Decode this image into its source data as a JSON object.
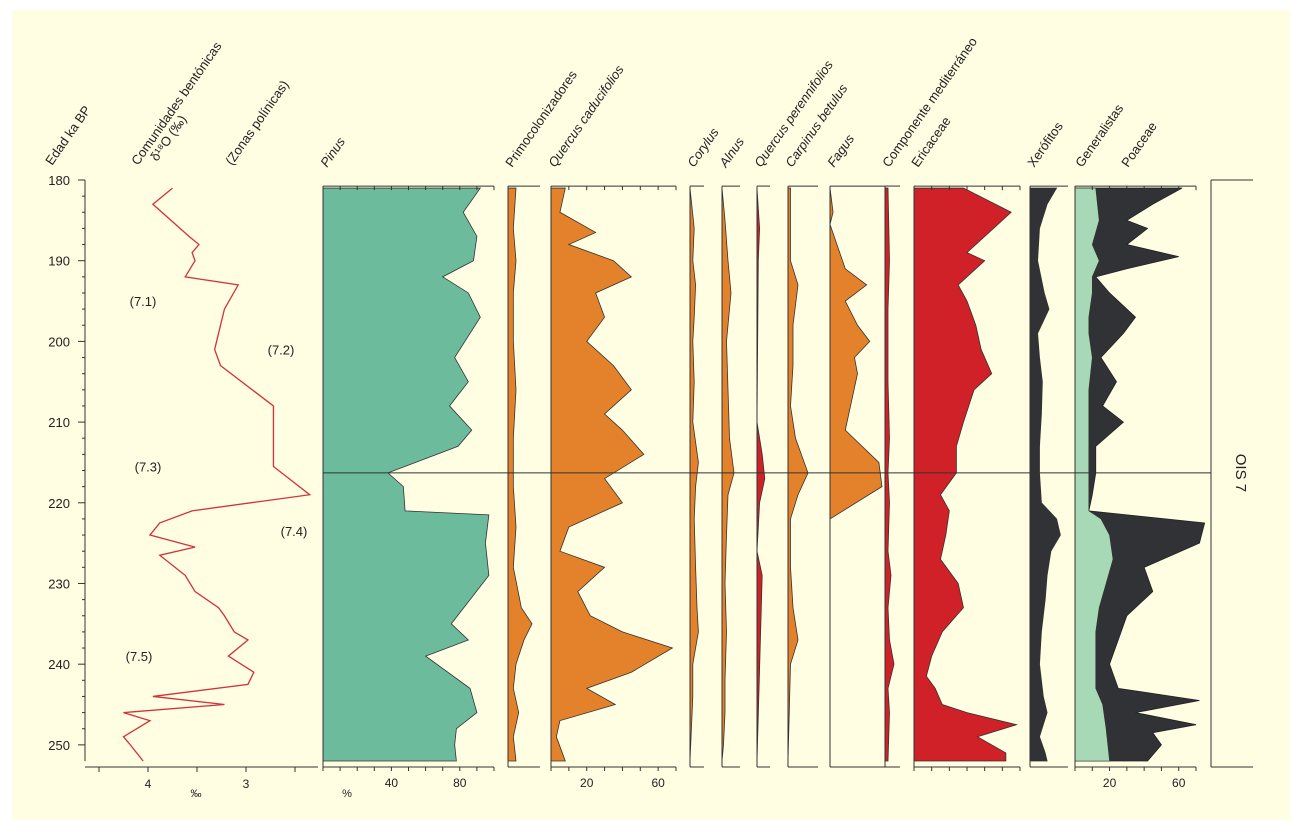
{
  "chart_data": {
    "type": "area",
    "age_axis": {
      "label": "Edad ka BP",
      "ticks": [
        "180",
        "190",
        "200",
        "210",
        "220",
        "230",
        "240",
        "250"
      ],
      "range": [
        180,
        252
      ]
    },
    "header_labels": {
      "benthic": "Comunidades bentónicas",
      "delta": "δ¹⁸O (‰)",
      "zones": "(Zonas polínicas)"
    },
    "bottom_units": {
      "permil": "‰",
      "percent": "%"
    },
    "zones": [
      {
        "label": "(7.1)",
        "age": 195
      },
      {
        "label": "(7.2)",
        "age": 201
      },
      {
        "label": "(7.3)",
        "age": 215.5
      },
      {
        "label": "(7.4)",
        "age": 223.5
      },
      {
        "label": "(7.5)",
        "age": 239
      }
    ],
    "event_line_age": 216.3,
    "ois_label": "OIS 7",
    "colors": {
      "background": "#fffde2",
      "delta_line": "#d2313a",
      "pinus": "#6cbb9d",
      "orange": "#e3822b",
      "red": "#cf2127",
      "dark": "#303236",
      "light_green": "#a8d9b6"
    },
    "delta18o": {
      "ticks": [
        "4",
        "3"
      ],
      "ages": [
        181,
        183,
        187,
        188,
        189,
        190,
        192,
        193,
        196,
        199,
        201,
        203,
        208,
        212,
        215.5,
        219,
        221,
        222.5,
        224,
        225.5,
        226.5,
        229,
        231,
        233,
        234,
        236,
        237,
        239,
        241,
        242.5,
        244,
        245,
        246,
        247,
        249,
        250,
        252
      ],
      "values": [
        3.75,
        3.95,
        3.58,
        3.48,
        3.55,
        3.52,
        3.62,
        3.08,
        3.22,
        3.28,
        3.32,
        3.26,
        2.72,
        2.72,
        2.72,
        2.35,
        3.55,
        3.88,
        3.98,
        3.52,
        3.88,
        3.62,
        3.52,
        3.28,
        3.22,
        3.12,
        2.98,
        3.18,
        2.92,
        2.98,
        3.95,
        3.22,
        4.25,
        3.98,
        4.25,
        4.18,
        4.05
      ]
    },
    "series": [
      {
        "name": "Pinus",
        "ages": [
          181,
          184,
          187,
          190,
          192,
          194,
          197,
          199,
          202,
          205,
          208,
          211,
          213,
          216.3,
          218,
          221,
          221.5,
          225,
          229,
          232,
          235,
          237,
          239,
          243,
          246,
          248,
          250,
          252
        ],
        "values": [
          92,
          82,
          90,
          88,
          70,
          85,
          92,
          86,
          77,
          85,
          74,
          87,
          79,
          38,
          47,
          48,
          97,
          95,
          97,
          86,
          75,
          85,
          60,
          86,
          90,
          78,
          77,
          78
        ],
        "ticks": [
          "40",
          "80"
        ]
      },
      {
        "name": "Primocolonizadores",
        "ages": [
          181,
          186,
          190,
          194,
          200,
          206,
          212,
          218,
          223,
          228,
          233,
          235,
          237,
          240,
          243,
          246,
          249,
          252
        ],
        "values": [
          3,
          2,
          3,
          2,
          2,
          3,
          2,
          2,
          3,
          2,
          5,
          9,
          6,
          3,
          2,
          4,
          2,
          3
        ]
      },
      {
        "name": "Quercus caducifolios",
        "ages": [
          181,
          184,
          186.5,
          188,
          190,
          192,
          194,
          197,
          200,
          203,
          206,
          209,
          211,
          214,
          217,
          220,
          223,
          226,
          228,
          231,
          234,
          236,
          238,
          241,
          243,
          245,
          247,
          249,
          252
        ],
        "values": [
          8,
          5,
          25,
          10,
          35,
          45,
          25,
          30,
          20,
          35,
          45,
          30,
          40,
          52,
          30,
          40,
          10,
          5,
          30,
          15,
          22,
          40,
          68,
          45,
          20,
          36,
          5,
          3,
          8
        ],
        "ticks": [
          "20",
          "60"
        ]
      },
      {
        "name": "Corylus",
        "ages": [
          181,
          186,
          190,
          193,
          197,
          200,
          205,
          210,
          215,
          218,
          222,
          228,
          233,
          236,
          240,
          244,
          248,
          252
        ],
        "values": [
          0,
          1.5,
          1,
          2,
          1.5,
          1,
          1.5,
          1,
          3,
          2,
          1.5,
          2,
          2.5,
          3,
          1,
          1,
          0.5,
          0
        ]
      },
      {
        "name": "Alnus",
        "ages": [
          181,
          185,
          190,
          194,
          200,
          206,
          212,
          216.3,
          219,
          224,
          230,
          236,
          242,
          246,
          250,
          252
        ],
        "values": [
          0,
          1,
          2,
          3,
          1.5,
          2,
          2.5,
          4,
          2,
          1.5,
          1,
          1.5,
          1,
          1,
          0.5,
          0
        ]
      },
      {
        "name": "Quercus perennifolios",
        "ages": [
          181,
          186,
          190,
          210,
          214,
          217,
          220,
          226,
          229,
          252
        ],
        "values": [
          0,
          1,
          0.5,
          0,
          2,
          3,
          1,
          0,
          2,
          0
        ]
      },
      {
        "name": "Carpinus betulus",
        "ages": [
          181,
          190,
          193,
          198,
          203,
          208,
          212,
          216.3,
          219,
          222,
          228,
          233,
          237,
          240,
          252
        ],
        "values": [
          1,
          1,
          4,
          2,
          2,
          1,
          3,
          8,
          4,
          1,
          1,
          2,
          4,
          1,
          0
        ]
      },
      {
        "name": "Fagus",
        "ages": [
          181,
          184,
          185.5,
          191,
          193,
          195,
          198,
          200,
          202,
          204,
          211,
          215,
          218,
          222
        ],
        "values": [
          0,
          1,
          0,
          5,
          12,
          5,
          9,
          13,
          8,
          9,
          5,
          16,
          17,
          0
        ]
      },
      {
        "name": "Componente mediterráneo",
        "ages": [
          181,
          190,
          196,
          205,
          212,
          216.3,
          220,
          226,
          229,
          233,
          237,
          240,
          243,
          246,
          252
        ],
        "values": [
          1,
          1.5,
          1,
          1,
          1.5,
          1,
          1.5,
          1,
          2,
          1,
          1.5,
          3,
          1,
          1.5,
          1
        ]
      },
      {
        "name": "Ericaceae",
        "ages": [
          181,
          184,
          186,
          189,
          190,
          193,
          195,
          198,
          201,
          204,
          206,
          210,
          213,
          216.3,
          219,
          221,
          224,
          227,
          230,
          233,
          236,
          239,
          241.5,
          243,
          245,
          246,
          247.5,
          249,
          251,
          252
        ],
        "values": [
          28,
          55,
          45,
          30,
          40,
          25,
          30,
          35,
          38,
          44,
          34,
          28,
          24,
          24,
          15,
          20,
          18,
          15,
          25,
          28,
          16,
          10,
          7,
          12,
          16,
          30,
          58,
          36,
          52,
          52
        ]
      },
      {
        "name": "Xerófitos",
        "ages": [
          181,
          183,
          186,
          190,
          194,
          196,
          199,
          202,
          205,
          209,
          213,
          216.3,
          220,
          222,
          224,
          226,
          229,
          232,
          236,
          240,
          244,
          246,
          249,
          251,
          252
        ],
        "values": [
          28,
          18,
          10,
          8,
          15,
          20,
          8,
          10,
          13,
          12,
          10,
          10,
          12,
          28,
          32,
          22,
          18,
          16,
          12,
          10,
          14,
          18,
          10,
          16,
          18
        ],
        "ticks": []
      },
      {
        "name": "Generalistas",
        "ages": [
          181,
          185,
          188,
          190,
          192,
          194,
          197,
          199,
          202,
          206,
          209,
          212,
          215,
          218,
          221,
          222,
          224,
          227,
          230,
          233,
          236,
          240,
          243,
          245,
          248,
          252
        ],
        "values": [
          12,
          14,
          10,
          14,
          10,
          10,
          8,
          8,
          10,
          8,
          8,
          8,
          8,
          8,
          8,
          15,
          20,
          22,
          18,
          14,
          12,
          12,
          12,
          16,
          18,
          20
        ]
      },
      {
        "name": "Poaceae",
        "ages": [
          181,
          183,
          185,
          186,
          188,
          189.5,
          191,
          192,
          194,
          197,
          199,
          202,
          205,
          208,
          210,
          213,
          216.3,
          219,
          221,
          222.5,
          225,
          228,
          231,
          234,
          237,
          240,
          243,
          244.5,
          246,
          247.5,
          248.5,
          250,
          252
        ],
        "values": [
          62,
          45,
          30,
          42,
          30,
          60,
          30,
          12,
          20,
          35,
          28,
          15,
          24,
          16,
          28,
          12,
          12,
          10,
          8,
          75,
          72,
          40,
          45,
          30,
          25,
          20,
          25,
          72,
          35,
          70,
          45,
          50,
          42
        ],
        "ticks": [
          "20",
          "60"
        ]
      }
    ]
  }
}
